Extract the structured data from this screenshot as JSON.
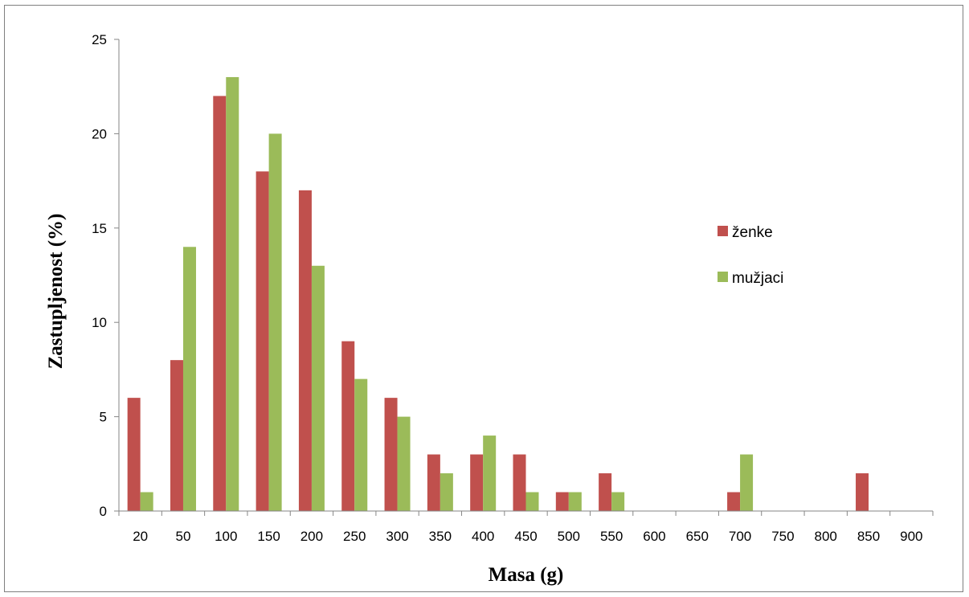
{
  "chart_data": {
    "type": "bar",
    "title": "",
    "xlabel": "Masa (g)",
    "ylabel": "Zastupljenost (%)",
    "ylim": [
      0,
      25
    ],
    "yticks": [
      "0",
      "5",
      "10",
      "15",
      "20",
      "25"
    ],
    "grid": false,
    "legend_position": "right",
    "categories": [
      "20",
      "50",
      "100",
      "150",
      "200",
      "250",
      "300",
      "350",
      "400",
      "450",
      "500",
      "550",
      "600",
      "650",
      "700",
      "750",
      "800",
      "850",
      "900"
    ],
    "series": [
      {
        "name": "ženke",
        "color": "#c0504d",
        "values": [
          6,
          8,
          22,
          18,
          17,
          9,
          6,
          3,
          3,
          3,
          1,
          2,
          0,
          0,
          1,
          0,
          0,
          2,
          0
        ]
      },
      {
        "name": "mužjaci",
        "color": "#9bbb59",
        "values": [
          1,
          14,
          23,
          20,
          13,
          7,
          5,
          2,
          4,
          1,
          1,
          1,
          0,
          0,
          3,
          0,
          0,
          0,
          0
        ]
      }
    ]
  }
}
